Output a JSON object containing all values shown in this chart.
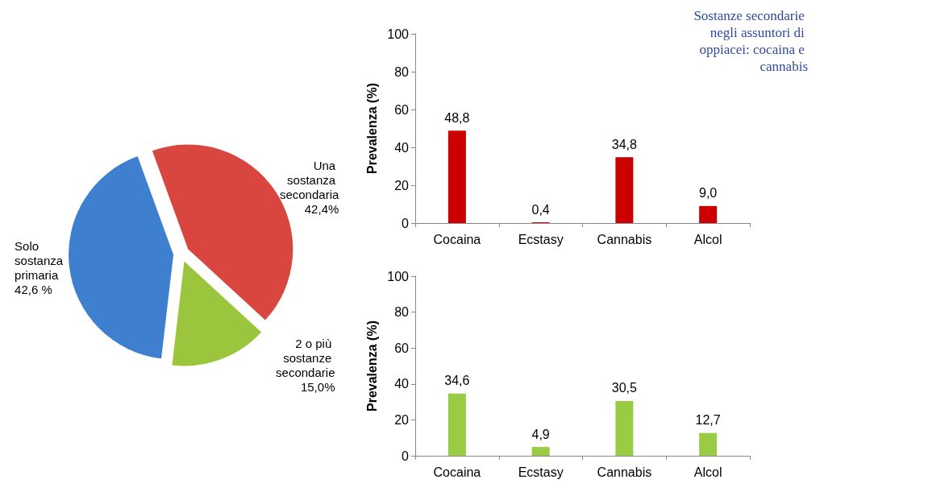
{
  "chart_data": [
    {
      "type": "pie",
      "categories": [
        "Una sostanza secondaria",
        "2 o più sostanze secondarie",
        "Solo sostanza primaria"
      ],
      "values": [
        42.4,
        15.0,
        42.6
      ],
      "value_labels": [
        "42,4%",
        "15,0%",
        "42,6 %"
      ],
      "colors": [
        "#d9463f",
        "#9bc53d",
        "#3f7fd0"
      ],
      "legend": false
    },
    {
      "type": "bar",
      "title": "Sostanze secondarie negli assuntori di oppiacei: cocaina e cannabis",
      "ylabel": "Prevalenza (%)",
      "categories": [
        "Cocaina",
        "Ecstasy",
        "Cannabis",
        "Alcol"
      ],
      "series": [
        {
          "color": "#cc0000",
          "values": [
            48.8,
            0.4,
            34.8,
            9.0
          ],
          "value_labels": [
            "48,8",
            "0,4",
            "34,8",
            "9,0"
          ]
        }
      ],
      "ylim": [
        0,
        100
      ],
      "yticks": [
        0,
        20,
        40,
        60,
        80,
        100
      ],
      "data_labels": true,
      "grid": false,
      "legend": false
    },
    {
      "type": "bar",
      "ylabel": "Prevalenza (%)",
      "categories": [
        "Cocaina",
        "Ecstasy",
        "Cannabis",
        "Alcol"
      ],
      "series": [
        {
          "color": "#99cc44",
          "values": [
            34.6,
            4.9,
            30.5,
            12.7
          ],
          "value_labels": [
            "34,6",
            "4,9",
            "30,5",
            "12,7"
          ]
        }
      ],
      "ylim": [
        0,
        100
      ],
      "yticks": [
        0,
        20,
        40,
        60,
        80,
        100
      ],
      "data_labels": true,
      "grid": false,
      "legend": false
    }
  ]
}
